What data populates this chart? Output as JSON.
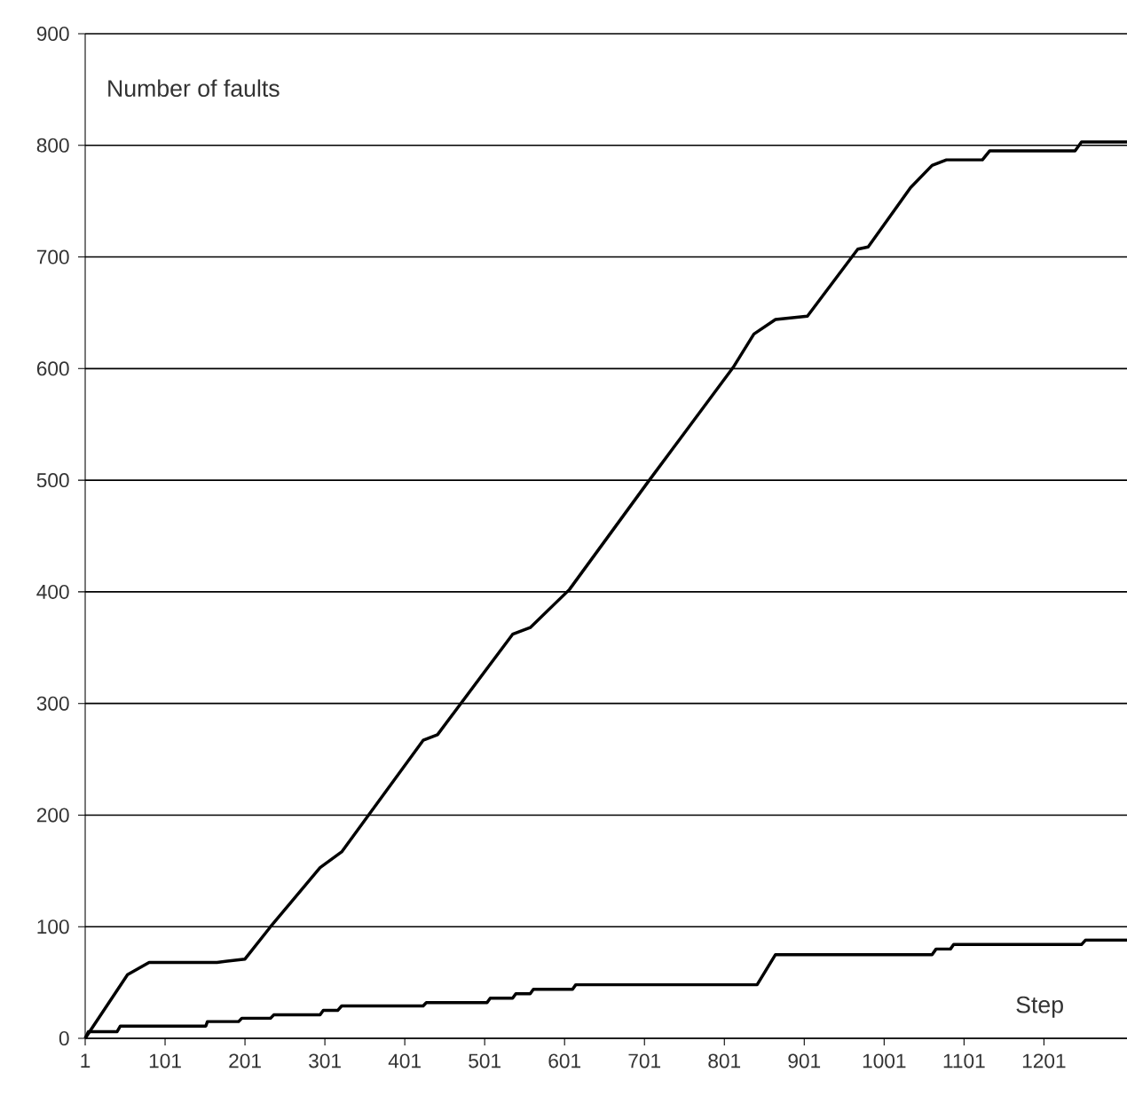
{
  "chart_data": {
    "type": "line",
    "ylabel": "Number of faults",
    "xlabel": "Step",
    "xlim": [
      1,
      1305
    ],
    "xticks": [
      1,
      101,
      201,
      301,
      401,
      501,
      601,
      701,
      801,
      901,
      1001,
      1101,
      1201
    ],
    "ylim": [
      0,
      900
    ],
    "yticks": [
      0,
      100,
      200,
      300,
      400,
      500,
      600,
      700,
      800,
      900
    ],
    "grid": "y",
    "marker": "none",
    "line_style": "solid",
    "series": [
      {
        "color": "#000000",
        "x": [
          1,
          54,
          81,
          166,
          201,
          233,
          295,
          322,
          424,
          442,
          536,
          558,
          607,
          705,
          812,
          838,
          865,
          905,
          968,
          981,
          1034,
          1061,
          1079,
          1124,
          1133,
          1240,
          1248,
          1305
        ],
        "values": [
          0,
          57,
          68,
          68,
          71,
          100,
          153,
          167,
          267,
          272,
          362,
          368,
          402,
          498,
          601,
          631,
          644,
          647,
          707,
          709,
          762,
          782,
          787,
          787,
          795,
          795,
          803,
          803
        ]
      },
      {
        "color": "#000000",
        "x": [
          1,
          5,
          41,
          45,
          152,
          154,
          193,
          197,
          233,
          237,
          295,
          299,
          317,
          322,
          424,
          428,
          504,
          508,
          536,
          540,
          558,
          562,
          611,
          615,
          842,
          865,
          1061,
          1066,
          1084,
          1088,
          1248,
          1253,
          1305
        ],
        "values": [
          0,
          6,
          6,
          11,
          11,
          15,
          15,
          18,
          18,
          21,
          21,
          25,
          25,
          29,
          29,
          32,
          32,
          36,
          36,
          40,
          40,
          44,
          44,
          48,
          48,
          75,
          75,
          80,
          80,
          84,
          84,
          88,
          88
        ]
      }
    ]
  }
}
